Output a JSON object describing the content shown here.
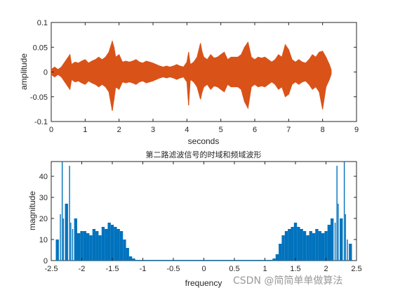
{
  "watermark": "CSDN @简简单单做算法",
  "chart_data": [
    {
      "type": "line",
      "title": "",
      "xlabel": "seconds",
      "ylabel": "amplitude",
      "xlim": [
        0,
        9
      ],
      "ylim": [
        -0.1,
        0.1
      ],
      "xticks": [
        0,
        1,
        2,
        3,
        4,
        5,
        6,
        7,
        8,
        9
      ],
      "yticks": [
        -0.1,
        -0.05,
        0,
        0.05,
        0.1
      ],
      "ytick_labels": [
        "-0.1",
        "-0.05",
        "0",
        "0.05",
        "0.1"
      ],
      "grid": false,
      "color": "#d95319",
      "series": [
        {
          "x": [
            0.0,
            0.1,
            0.2,
            0.3,
            0.4,
            0.5,
            0.55,
            0.6,
            0.7,
            0.8,
            0.9,
            1.0,
            1.1,
            1.2,
            1.3,
            1.4,
            1.5,
            1.6,
            1.7,
            1.8,
            1.85,
            1.9,
            2.0,
            2.1,
            2.2,
            2.3,
            2.4,
            2.5,
            2.6,
            2.7,
            2.8,
            2.9,
            3.0,
            3.1,
            3.2,
            3.3,
            3.4,
            3.5,
            3.6,
            3.7,
            3.8,
            3.9,
            4.0,
            4.05,
            4.1,
            4.2,
            4.3,
            4.4,
            4.45,
            4.5,
            4.6,
            4.7,
            4.8,
            4.9,
            5.0,
            5.1,
            5.2,
            5.3,
            5.4,
            5.5,
            5.6,
            5.7,
            5.8,
            5.9,
            6.0,
            6.1,
            6.2,
            6.3,
            6.4,
            6.5,
            6.6,
            6.7,
            6.8,
            6.9,
            7.0,
            7.1,
            7.2,
            7.3,
            7.4,
            7.5,
            7.6,
            7.7,
            7.8,
            7.9,
            8.0,
            8.1,
            8.2,
            8.25
          ],
          "y_max": [
            0.005,
            0.01,
            0.005,
            0.01,
            0.02,
            0.03,
            0.035,
            0.015,
            0.02,
            0.018,
            0.022,
            0.025,
            0.018,
            0.022,
            0.025,
            0.03,
            0.025,
            0.03,
            0.04,
            0.062,
            0.05,
            0.03,
            0.035,
            0.02,
            0.022,
            0.02,
            0.022,
            0.025,
            0.02,
            0.018,
            0.022,
            0.02,
            0.018,
            0.015,
            0.012,
            0.01,
            0.012,
            0.01,
            0.012,
            0.015,
            0.012,
            0.01,
            0.02,
            0.04,
            0.015,
            0.02,
            0.03,
            0.058,
            0.04,
            0.03,
            0.025,
            0.035,
            0.028,
            0.03,
            0.035,
            0.04,
            0.025,
            0.03,
            0.03,
            0.03,
            0.035,
            0.05,
            0.06,
            0.03,
            0.025,
            0.03,
            0.028,
            0.03,
            0.025,
            0.02,
            0.025,
            0.035,
            0.03,
            0.055,
            0.045,
            0.025,
            0.02,
            0.025,
            0.02,
            0.018,
            0.025,
            0.035,
            0.03,
            0.04,
            0.042,
            0.03,
            0.015,
            0.005
          ],
          "y_min": [
            -0.005,
            -0.01,
            -0.005,
            -0.01,
            -0.02,
            -0.03,
            -0.035,
            -0.015,
            -0.02,
            -0.018,
            -0.022,
            -0.025,
            -0.018,
            -0.022,
            -0.025,
            -0.03,
            -0.025,
            -0.03,
            -0.04,
            -0.078,
            -0.055,
            -0.03,
            -0.035,
            -0.02,
            -0.022,
            -0.02,
            -0.022,
            -0.025,
            -0.02,
            -0.018,
            -0.022,
            -0.02,
            -0.018,
            -0.015,
            -0.012,
            -0.01,
            -0.012,
            -0.01,
            -0.012,
            -0.015,
            -0.012,
            -0.01,
            -0.02,
            -0.067,
            -0.015,
            -0.02,
            -0.03,
            -0.055,
            -0.04,
            -0.03,
            -0.025,
            -0.035,
            -0.028,
            -0.03,
            -0.035,
            -0.04,
            -0.025,
            -0.03,
            -0.03,
            -0.03,
            -0.035,
            -0.06,
            -0.073,
            -0.03,
            -0.025,
            -0.03,
            -0.028,
            -0.03,
            -0.025,
            -0.02,
            -0.025,
            -0.035,
            -0.03,
            -0.05,
            -0.045,
            -0.025,
            -0.02,
            -0.025,
            -0.02,
            -0.018,
            -0.025,
            -0.035,
            -0.03,
            -0.04,
            -0.075,
            -0.03,
            -0.015,
            -0.005
          ]
        }
      ]
    },
    {
      "type": "bar",
      "title": "第二路滤波信号的时域和频域波形",
      "xlabel": "frequency",
      "ylabel": "magnitude",
      "xlim": [
        -2.5,
        2.5
      ],
      "ylim": [
        0,
        47
      ],
      "xticks": [
        -2.5,
        -2,
        -1.5,
        -1,
        -0.5,
        0,
        0.5,
        1,
        1.5,
        2,
        2.5
      ],
      "xtick_labels": [
        "-2.5",
        "-2",
        "-1.5",
        "-1",
        "-0.5",
        "0",
        "0.5",
        "1",
        "1.5",
        "2",
        "2.5"
      ],
      "yticks": [
        0,
        10,
        20,
        30,
        40
      ],
      "grid": false,
      "color": "#0072bd",
      "series": [
        {
          "x": [
            -2.4,
            -2.35,
            -2.32,
            -2.3,
            -2.25,
            -2.2,
            -2.18,
            -2.15,
            -2.1,
            -2.05,
            -2.0,
            -1.95,
            -1.9,
            -1.85,
            -1.8,
            -1.75,
            -1.7,
            -1.65,
            -1.6,
            -1.55,
            -1.5,
            -1.45,
            -1.4,
            -1.35,
            -1.3,
            -1.25,
            -1.2,
            -1.15,
            1.15,
            1.2,
            1.25,
            1.3,
            1.35,
            1.4,
            1.45,
            1.5,
            1.55,
            1.6,
            1.65,
            1.7,
            1.75,
            1.8,
            1.85,
            1.9,
            1.95,
            2.0,
            2.05,
            2.1,
            2.15,
            2.18,
            2.2,
            2.25,
            2.3,
            2.32,
            2.35,
            2.4
          ],
          "values": [
            10,
            22,
            48,
            20,
            27,
            45,
            18,
            15,
            20,
            13,
            14,
            14,
            13,
            12,
            15,
            14,
            12,
            16,
            15,
            18,
            17,
            16,
            15,
            14,
            10,
            6,
            2,
            1,
            1,
            3,
            8,
            12,
            14,
            15,
            16,
            18,
            16,
            15,
            14,
            12,
            14,
            13,
            15,
            14,
            13,
            14,
            17,
            20,
            18,
            45,
            27,
            20,
            48,
            22,
            10,
            8
          ]
        }
      ]
    }
  ]
}
